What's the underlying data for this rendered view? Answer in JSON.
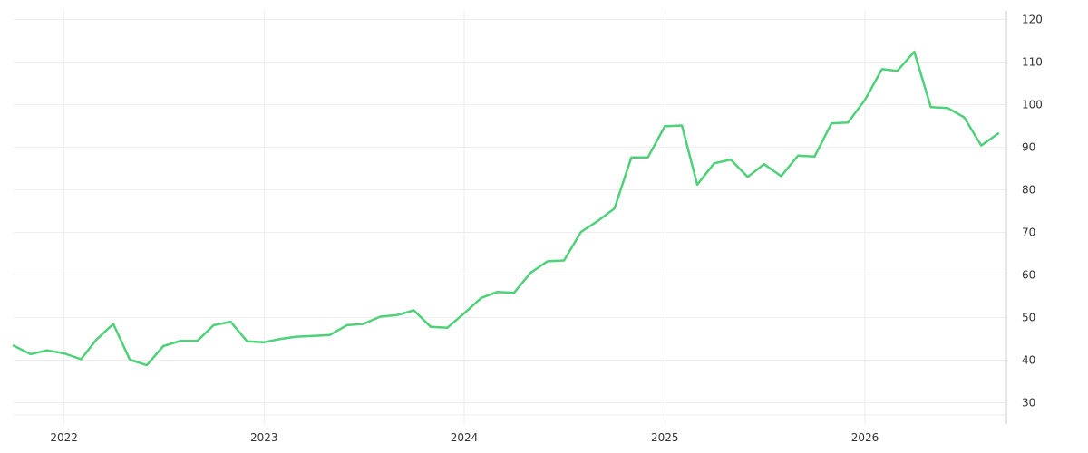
{
  "chart_data": {
    "type": "line",
    "title": "",
    "xlabel": "",
    "ylabel": "",
    "grid": true,
    "legend": "none",
    "y_axis_side": "right",
    "xlim": [
      "2021-10-01",
      "2026-09-01"
    ],
    "ylim": [
      25,
      122
    ],
    "x_tick_labels": [
      "2022",
      "2023",
      "2024",
      "2025",
      "2026"
    ],
    "y_tick_labels": [
      "30",
      "40",
      "50",
      "60",
      "70",
      "80",
      "90",
      "100",
      "110",
      "120"
    ],
    "series": [
      {
        "color": "#4fd17a",
        "x": [
          "2021-10-01",
          "2021-11-01",
          "2021-12-01",
          "2022-01-01",
          "2022-02-01",
          "2022-03-01",
          "2022-04-01",
          "2022-05-01",
          "2022-06-01",
          "2022-07-01",
          "2022-08-01",
          "2022-09-01",
          "2022-10-01",
          "2022-11-01",
          "2022-12-01",
          "2023-01-01",
          "2023-02-01",
          "2023-03-01",
          "2023-04-01",
          "2023-05-01",
          "2023-06-01",
          "2023-07-01",
          "2023-08-01",
          "2023-09-01",
          "2023-10-01",
          "2023-11-01",
          "2023-12-01",
          "2024-01-01",
          "2024-02-01",
          "2024-03-01",
          "2024-04-01",
          "2024-05-01",
          "2024-06-01",
          "2024-07-01",
          "2024-08-01",
          "2024-09-01",
          "2024-10-01",
          "2024-11-01",
          "2024-12-01",
          "2025-01-01",
          "2025-02-01",
          "2025-03-01",
          "2025-04-01",
          "2025-05-01",
          "2025-06-01",
          "2025-07-01",
          "2025-08-01",
          "2025-09-01",
          "2025-10-01",
          "2025-11-01",
          "2025-12-01",
          "2026-01-01",
          "2026-02-01",
          "2026-03-01",
          "2026-04-01",
          "2026-05-01",
          "2026-06-01",
          "2026-07-01",
          "2026-08-01",
          "2026-09-01"
        ],
        "values": [
          43.4,
          41.4,
          42.3,
          41.6,
          40.2,
          44.8,
          48.5,
          40.1,
          38.8,
          43.3,
          44.5,
          44.5,
          48.2,
          49.0,
          44.4,
          44.2,
          45.0,
          45.5,
          45.7,
          45.9,
          48.2,
          48.5,
          50.2,
          50.6,
          51.7,
          47.8,
          47.6,
          51.0,
          54.6,
          56.0,
          55.8,
          60.5,
          63.2,
          63.4,
          70.1,
          72.7,
          75.6,
          87.6,
          87.6,
          94.9,
          95.1,
          81.2,
          86.2,
          87.1,
          83.0,
          86.0,
          83.2,
          88.0,
          87.8,
          95.6,
          95.8,
          101.1,
          108.3,
          107.9,
          112.4,
          99.4,
          99.2,
          97.0,
          90.4,
          93.2
        ]
      }
    ]
  }
}
